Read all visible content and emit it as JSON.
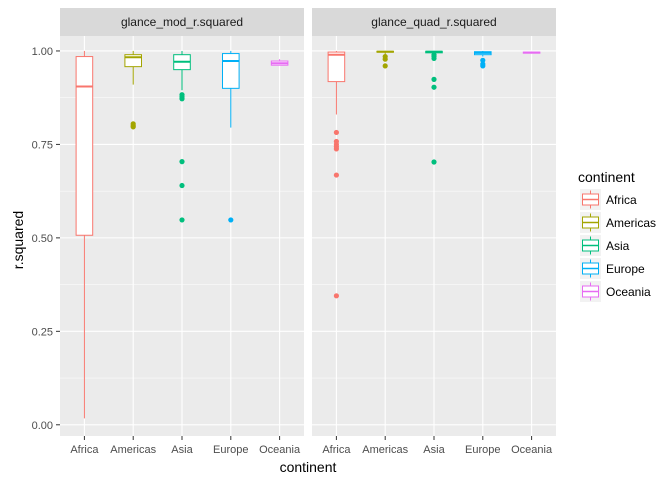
{
  "chart_data": {
    "type": "boxplot",
    "xlabel": "continent",
    "ylabel": "r.squared",
    "ylim": [
      -0.03,
      1.04
    ],
    "yticks": [
      0.0,
      0.25,
      0.5,
      0.75,
      1.0
    ],
    "ytick_labels": [
      "0.00",
      "0.25",
      "0.50",
      "0.75",
      "1.00"
    ],
    "categories": [
      "Africa",
      "Americas",
      "Asia",
      "Europe",
      "Oceania"
    ],
    "colors": {
      "Africa": "#F8766D",
      "Americas": "#A3A500",
      "Asia": "#00BF7D",
      "Europe": "#00B0F6",
      "Oceania": "#E76BF3"
    },
    "panel_background": "#EBEBEB",
    "strip_background": "#D9D9D9",
    "grid": true,
    "legend": {
      "title": "continent",
      "position": "right",
      "labels": [
        "Africa",
        "Americas",
        "Asia",
        "Europe",
        "Oceania"
      ]
    },
    "panels": [
      {
        "title": "glance_mod_r.squared",
        "boxes": [
          {
            "category": "Africa",
            "whisker_low": 0.017,
            "q1": 0.507,
            "median": 0.905,
            "q3": 0.985,
            "whisker_high": 1.0,
            "outliers": []
          },
          {
            "category": "Americas",
            "whisker_low": 0.91,
            "q1": 0.958,
            "median": 0.983,
            "q3": 0.99,
            "whisker_high": 1.0,
            "outliers": [
              0.797,
              0.8,
              0.805
            ]
          },
          {
            "category": "Asia",
            "whisker_low": 0.895,
            "q1": 0.95,
            "median": 0.971,
            "q3": 0.99,
            "whisker_high": 1.0,
            "outliers": [
              0.883,
              0.877,
              0.872,
              0.704,
              0.64,
              0.548
            ]
          },
          {
            "category": "Europe",
            "whisker_low": 0.795,
            "q1": 0.9,
            "median": 0.973,
            "q3": 0.993,
            "whisker_high": 1.0,
            "outliers": [
              0.548
            ]
          },
          {
            "category": "Oceania",
            "whisker_low": 0.961,
            "q1": 0.962,
            "median": 0.967,
            "q3": 0.973,
            "whisker_high": 0.978,
            "outliers": []
          }
        ]
      },
      {
        "title": "glance_quad_r.squared",
        "boxes": [
          {
            "category": "Africa",
            "whisker_low": 0.83,
            "q1": 0.918,
            "median": 0.99,
            "q3": 0.997,
            "whisker_high": 1.0,
            "outliers": [
              0.782,
              0.758,
              0.75,
              0.744,
              0.738,
              0.668,
              0.345
            ]
          },
          {
            "category": "Americas",
            "whisker_low": 0.99,
            "q1": 0.997,
            "median": 0.998,
            "q3": 0.999,
            "whisker_high": 1.0,
            "outliers": [
              0.985,
              0.978,
              0.96
            ]
          },
          {
            "category": "Asia",
            "whisker_low": 0.99,
            "q1": 0.995,
            "median": 0.998,
            "q3": 0.999,
            "whisker_high": 1.0,
            "outliers": [
              0.99,
              0.986,
              0.98,
              0.924,
              0.903,
              0.703
            ]
          },
          {
            "category": "Europe",
            "whisker_low": 0.985,
            "q1": 0.99,
            "median": 0.995,
            "q3": 0.998,
            "whisker_high": 1.0,
            "outliers": [
              0.975,
              0.965,
              0.96
            ]
          },
          {
            "category": "Oceania",
            "whisker_low": 0.993,
            "q1": 0.994,
            "median": 0.996,
            "q3": 0.997,
            "whisker_high": 0.998,
            "outliers": []
          }
        ]
      }
    ]
  }
}
